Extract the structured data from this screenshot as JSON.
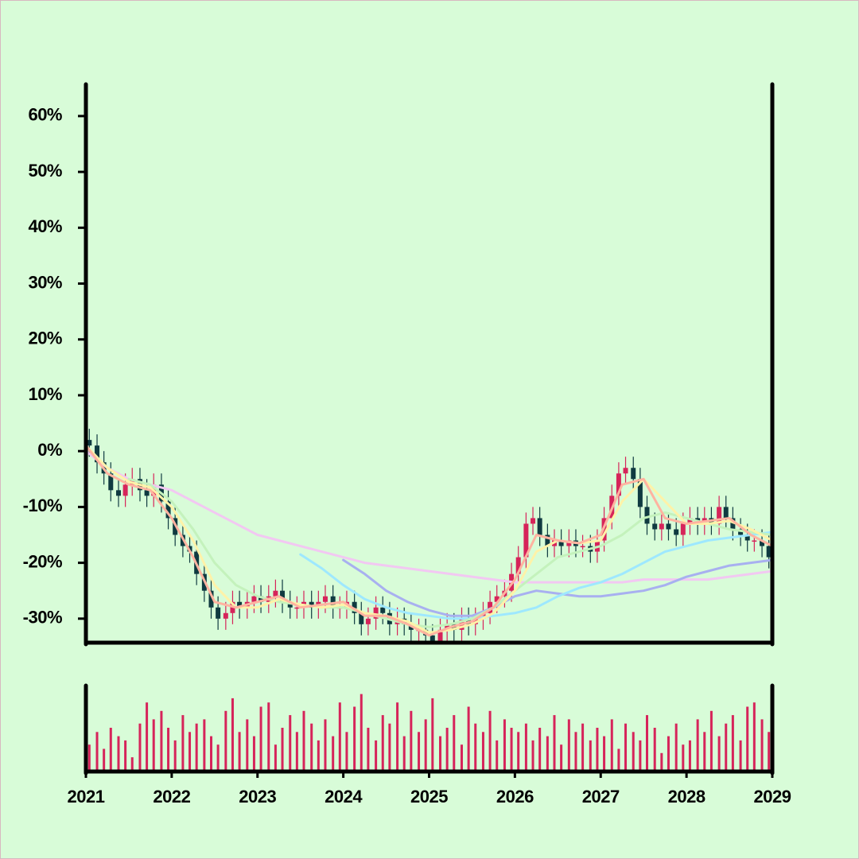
{
  "chart_data": [
    {
      "type": "candlestick",
      "xlim": [
        2021,
        2029
      ],
      "ylim": [
        -34.3,
        65.4
      ],
      "yticks": [
        {
          "value": -30,
          "label": "-30%"
        },
        {
          "value": -20,
          "label": "-20%"
        },
        {
          "value": -10,
          "label": "-10%"
        },
        {
          "value": 0,
          "label": "0%"
        },
        {
          "value": 10,
          "label": "10%"
        },
        {
          "value": 20,
          "label": "20%"
        },
        {
          "value": 30,
          "label": "30%"
        },
        {
          "value": 40,
          "label": "40%"
        },
        {
          "value": 50,
          "label": "50%"
        },
        {
          "value": 60,
          "label": "60%"
        }
      ],
      "up_color": "#d6245a",
      "down_color": "#0f3a40",
      "x": [
        2021.04,
        2021.13,
        2021.21,
        2021.29,
        2021.38,
        2021.46,
        2021.54,
        2021.63,
        2021.71,
        2021.79,
        2021.88,
        2021.96,
        2022.04,
        2022.13,
        2022.21,
        2022.29,
        2022.38,
        2022.46,
        2022.54,
        2022.63,
        2022.71,
        2022.79,
        2022.88,
        2022.96,
        2023.04,
        2023.13,
        2023.21,
        2023.29,
        2023.38,
        2023.46,
        2023.54,
        2023.63,
        2023.71,
        2023.79,
        2023.88,
        2023.96,
        2024.04,
        2024.13,
        2024.21,
        2024.29,
        2024.38,
        2024.46,
        2024.54,
        2024.63,
        2024.71,
        2024.79,
        2024.88,
        2024.96,
        2025.04,
        2025.13,
        2025.21,
        2025.29,
        2025.38,
        2025.46,
        2025.54,
        2025.63,
        2025.71,
        2025.79,
        2025.88,
        2025.96,
        2026.04,
        2026.13,
        2026.21,
        2026.29,
        2026.38,
        2026.46,
        2026.54,
        2026.63,
        2026.71,
        2026.79,
        2026.88,
        2026.96,
        2027.04,
        2027.13,
        2027.21,
        2027.29,
        2027.38,
        2027.46,
        2027.54,
        2027.63,
        2027.71,
        2027.79,
        2027.88,
        2027.96,
        2028.04,
        2028.13,
        2028.21,
        2028.29,
        2028.38,
        2028.46,
        2028.54,
        2028.63,
        2028.71,
        2028.79,
        2028.88,
        2028.96
      ],
      "open": [
        2,
        1,
        -2,
        -4,
        -7,
        -8,
        -6,
        -5,
        -7,
        -8,
        -6,
        -9,
        -12,
        -15,
        -17,
        -18,
        -22,
        -25,
        -28,
        -30,
        -29,
        -27,
        -28,
        -27,
        -26,
        -27,
        -26,
        -25,
        -27,
        -28,
        -28,
        -27,
        -28,
        -27,
        -26,
        -28,
        -28,
        -27,
        -29,
        -31,
        -30,
        -28,
        -29,
        -31,
        -30,
        -31,
        -32,
        -32,
        -33,
        -34,
        -32,
        -31,
        -32,
        -30,
        -31,
        -30,
        -29,
        -27,
        -26,
        -25,
        -22,
        -19,
        -13,
        -12,
        -15,
        -17,
        -16,
        -17,
        -16,
        -17,
        -17,
        -18,
        -16,
        -12,
        -8,
        -4,
        -3,
        -5,
        -10,
        -13,
        -14,
        -13,
        -14,
        -15,
        -13,
        -12,
        -13,
        -12,
        -13,
        -10,
        -12,
        -14,
        -15,
        -16,
        -16,
        -17
      ],
      "high": [
        4,
        3,
        0,
        -2,
        -5,
        -4,
        -3,
        -3,
        -5,
        -4,
        -4,
        -7,
        -10,
        -13,
        -15,
        -16,
        -20,
        -23,
        -26,
        -27,
        -25,
        -25,
        -25,
        -24,
        -24,
        -24,
        -23,
        -23,
        -25,
        -26,
        -25,
        -25,
        -25,
        -24,
        -24,
        -26,
        -25,
        -25,
        -27,
        -28,
        -26,
        -26,
        -27,
        -28,
        -28,
        -29,
        -30,
        -30,
        -31,
        -30,
        -29,
        -29,
        -28,
        -28,
        -28,
        -27,
        -25,
        -24,
        -23,
        -20,
        -17,
        -11,
        -10,
        -10,
        -13,
        -14,
        -14,
        -14,
        -14,
        -15,
        -15,
        -14,
        -10,
        -6,
        -2,
        -1,
        -1,
        -3,
        -8,
        -11,
        -11,
        -11,
        -12,
        -11,
        -10,
        -10,
        -10,
        -10,
        -8,
        -8,
        -10,
        -12,
        -13,
        -14,
        -14,
        -15
      ],
      "low": [
        -1,
        -4,
        -6,
        -9,
        -10,
        -10,
        -8,
        -9,
        -10,
        -10,
        -11,
        -14,
        -17,
        -19,
        -20,
        -24,
        -27,
        -30,
        -32,
        -32,
        -31,
        -30,
        -30,
        -29,
        -29,
        -29,
        -28,
        -29,
        -30,
        -30,
        -30,
        -30,
        -30,
        -29,
        -30,
        -30,
        -30,
        -31,
        -33,
        -33,
        -32,
        -31,
        -33,
        -33,
        -33,
        -34,
        -34,
        -35,
        -36,
        -36,
        -34,
        -34,
        -34,
        -33,
        -33,
        -32,
        -31,
        -29,
        -28,
        -27,
        -24,
        -21,
        -15,
        -17,
        -19,
        -19,
        -19,
        -19,
        -19,
        -19,
        -20,
        -20,
        -18,
        -14,
        -10,
        -6,
        -7,
        -12,
        -15,
        -16,
        -16,
        -16,
        -17,
        -17,
        -15,
        -15,
        -15,
        -15,
        -15,
        -14,
        -16,
        -17,
        -18,
        -18,
        -19,
        -21
      ],
      "close": [
        1,
        -2,
        -4,
        -7,
        -8,
        -6,
        -5,
        -7,
        -8,
        -6,
        -9,
        -12,
        -15,
        -17,
        -18,
        -22,
        -25,
        -28,
        -30,
        -29,
        -27,
        -28,
        -27,
        -26,
        -27,
        -26,
        -25,
        -27,
        -28,
        -28,
        -27,
        -28,
        -27,
        -26,
        -28,
        -28,
        -27,
        -29,
        -31,
        -30,
        -28,
        -29,
        -31,
        -30,
        -31,
        -32,
        -32,
        -33,
        -34,
        -32,
        -31,
        -32,
        -30,
        -31,
        -30,
        -29,
        -27,
        -26,
        -25,
        -22,
        -19,
        -13,
        -12,
        -15,
        -17,
        -16,
        -17,
        -16,
        -17,
        -17,
        -18,
        -16,
        -12,
        -8,
        -4,
        -3,
        -5,
        -10,
        -13,
        -14,
        -13,
        -14,
        -15,
        -13,
        -12,
        -13,
        -12,
        -13,
        -10,
        -12,
        -14,
        -15,
        -16,
        -16,
        -17,
        -19
      ],
      "line_x": [
        2021,
        2021.25,
        2021.5,
        2021.75,
        2022,
        2022.25,
        2022.5,
        2022.75,
        2023,
        2023.25,
        2023.5,
        2023.75,
        2024,
        2024.25,
        2024.5,
        2024.75,
        2025,
        2025.25,
        2025.5,
        2025.75,
        2026,
        2026.25,
        2026.5,
        2026.75,
        2027,
        2027.25,
        2027.5,
        2027.75,
        2028,
        2028.25,
        2028.5,
        2028.75,
        2029
      ],
      "lines": [
        {
          "color": "#f2c8f2",
          "values": [
            0,
            -3,
            -5,
            -6,
            -7,
            -9,
            -11,
            -13,
            -15,
            -16,
            -17,
            -18,
            -19,
            -20,
            -20.5,
            -21,
            -21.5,
            -22,
            -22.5,
            -23,
            -23.5,
            -23.5,
            -23.5,
            -23.5,
            -23.5,
            -23.5,
            -23,
            -23,
            -23,
            -23,
            -22.5,
            -22,
            -21.5
          ]
        },
        {
          "color": "#a8b0f0",
          "values": [
            null,
            null,
            null,
            null,
            null,
            null,
            null,
            null,
            null,
            null,
            null,
            null,
            -19.5,
            -22,
            -25,
            -27,
            -28.5,
            -29.5,
            -29.5,
            -28,
            -26,
            -25,
            -25.5,
            -26,
            -26,
            -25.5,
            -25,
            -24,
            -22.5,
            -21.5,
            -20.5,
            -20,
            -19.5
          ]
        },
        {
          "color": "#9ee8ff",
          "values": [
            null,
            null,
            null,
            null,
            null,
            null,
            null,
            null,
            null,
            null,
            -18.5,
            -21,
            -24,
            -26.5,
            -28,
            -29,
            -29.5,
            -30,
            -30,
            -29.5,
            -29,
            -28,
            -26,
            -24.5,
            -23.5,
            -22,
            -20,
            -18,
            -17,
            -16,
            -15.5,
            -15,
            -14.5
          ]
        },
        {
          "color": "#c4f2bc",
          "values": [
            null,
            null,
            -5,
            -6,
            -9,
            -14,
            -20,
            -24,
            -26,
            -27,
            -27.5,
            -28,
            -28,
            -29,
            -30,
            -31,
            -31.5,
            -31,
            -30,
            -28,
            -25,
            -22,
            -19,
            -18,
            -17,
            -15,
            -12,
            -11,
            -12,
            -13,
            -14,
            -14.5,
            -15
          ]
        },
        {
          "color": "#fff2a8",
          "values": [
            1,
            -3,
            -5.5,
            -6.5,
            -10,
            -16,
            -24,
            -28,
            -28,
            -26.5,
            -27.5,
            -28,
            -27.5,
            -29,
            -29.5,
            -30.5,
            -32.5,
            -32,
            -31,
            -29,
            -25,
            -18,
            -16,
            -16.5,
            -16,
            -9,
            -5,
            -9,
            -13,
            -13,
            -12.5,
            -14,
            -16
          ]
        },
        {
          "color": "#ffb3a0",
          "values": [
            1,
            -4,
            -6,
            -7,
            -12,
            -19,
            -27,
            -28,
            -27,
            -26,
            -28,
            -27.5,
            -27,
            -29.5,
            -29.5,
            -31,
            -33,
            -31.5,
            -30.5,
            -28,
            -23,
            -15,
            -16,
            -16.5,
            -15,
            -6,
            -5,
            -12,
            -13,
            -12.5,
            -12,
            -15,
            -17
          ]
        }
      ]
    },
    {
      "type": "bar",
      "xlim": [
        2021,
        2029
      ],
      "ylim": [
        0,
        100
      ],
      "xticks": [
        2021,
        2022,
        2023,
        2024,
        2025,
        2026,
        2027,
        2028,
        2029
      ],
      "color": "#d6245a",
      "x": [
        2021.04,
        2021.13,
        2021.21,
        2021.29,
        2021.38,
        2021.46,
        2021.54,
        2021.63,
        2021.71,
        2021.79,
        2021.88,
        2021.96,
        2022.04,
        2022.13,
        2022.21,
        2022.29,
        2022.38,
        2022.46,
        2022.54,
        2022.63,
        2022.71,
        2022.79,
        2022.88,
        2022.96,
        2023.04,
        2023.13,
        2023.21,
        2023.29,
        2023.38,
        2023.46,
        2023.54,
        2023.63,
        2023.71,
        2023.79,
        2023.88,
        2023.96,
        2024.04,
        2024.13,
        2024.21,
        2024.29,
        2024.38,
        2024.46,
        2024.54,
        2024.63,
        2024.71,
        2024.79,
        2024.88,
        2024.96,
        2025.04,
        2025.13,
        2025.21,
        2025.29,
        2025.38,
        2025.46,
        2025.54,
        2025.63,
        2025.71,
        2025.79,
        2025.88,
        2025.96,
        2026.04,
        2026.13,
        2026.21,
        2026.29,
        2026.38,
        2026.46,
        2026.54,
        2026.63,
        2026.71,
        2026.79,
        2026.88,
        2026.96,
        2027.04,
        2027.13,
        2027.21,
        2027.29,
        2027.38,
        2027.46,
        2027.54,
        2027.63,
        2027.71,
        2027.79,
        2027.88,
        2027.96,
        2028.04,
        2028.13,
        2028.21,
        2028.29,
        2028.38,
        2028.46,
        2028.54,
        2028.63,
        2028.71,
        2028.79,
        2028.88,
        2028.96
      ],
      "values": [
        30,
        45,
        25,
        50,
        40,
        35,
        15,
        55,
        80,
        60,
        70,
        50,
        35,
        65,
        45,
        55,
        60,
        40,
        30,
        70,
        85,
        45,
        60,
        40,
        75,
        80,
        30,
        50,
        65,
        45,
        70,
        55,
        35,
        60,
        40,
        80,
        45,
        75,
        90,
        50,
        35,
        65,
        55,
        80,
        40,
        70,
        45,
        60,
        85,
        40,
        50,
        65,
        30,
        75,
        55,
        45,
        70,
        35,
        60,
        50,
        45,
        55,
        35,
        50,
        40,
        65,
        30,
        60,
        45,
        55,
        35,
        50,
        40,
        60,
        25,
        55,
        45,
        35,
        65,
        50,
        20,
        40,
        55,
        30,
        35,
        60,
        45,
        70,
        40,
        55,
        65,
        35,
        75,
        80,
        60,
        45
      ]
    }
  ]
}
